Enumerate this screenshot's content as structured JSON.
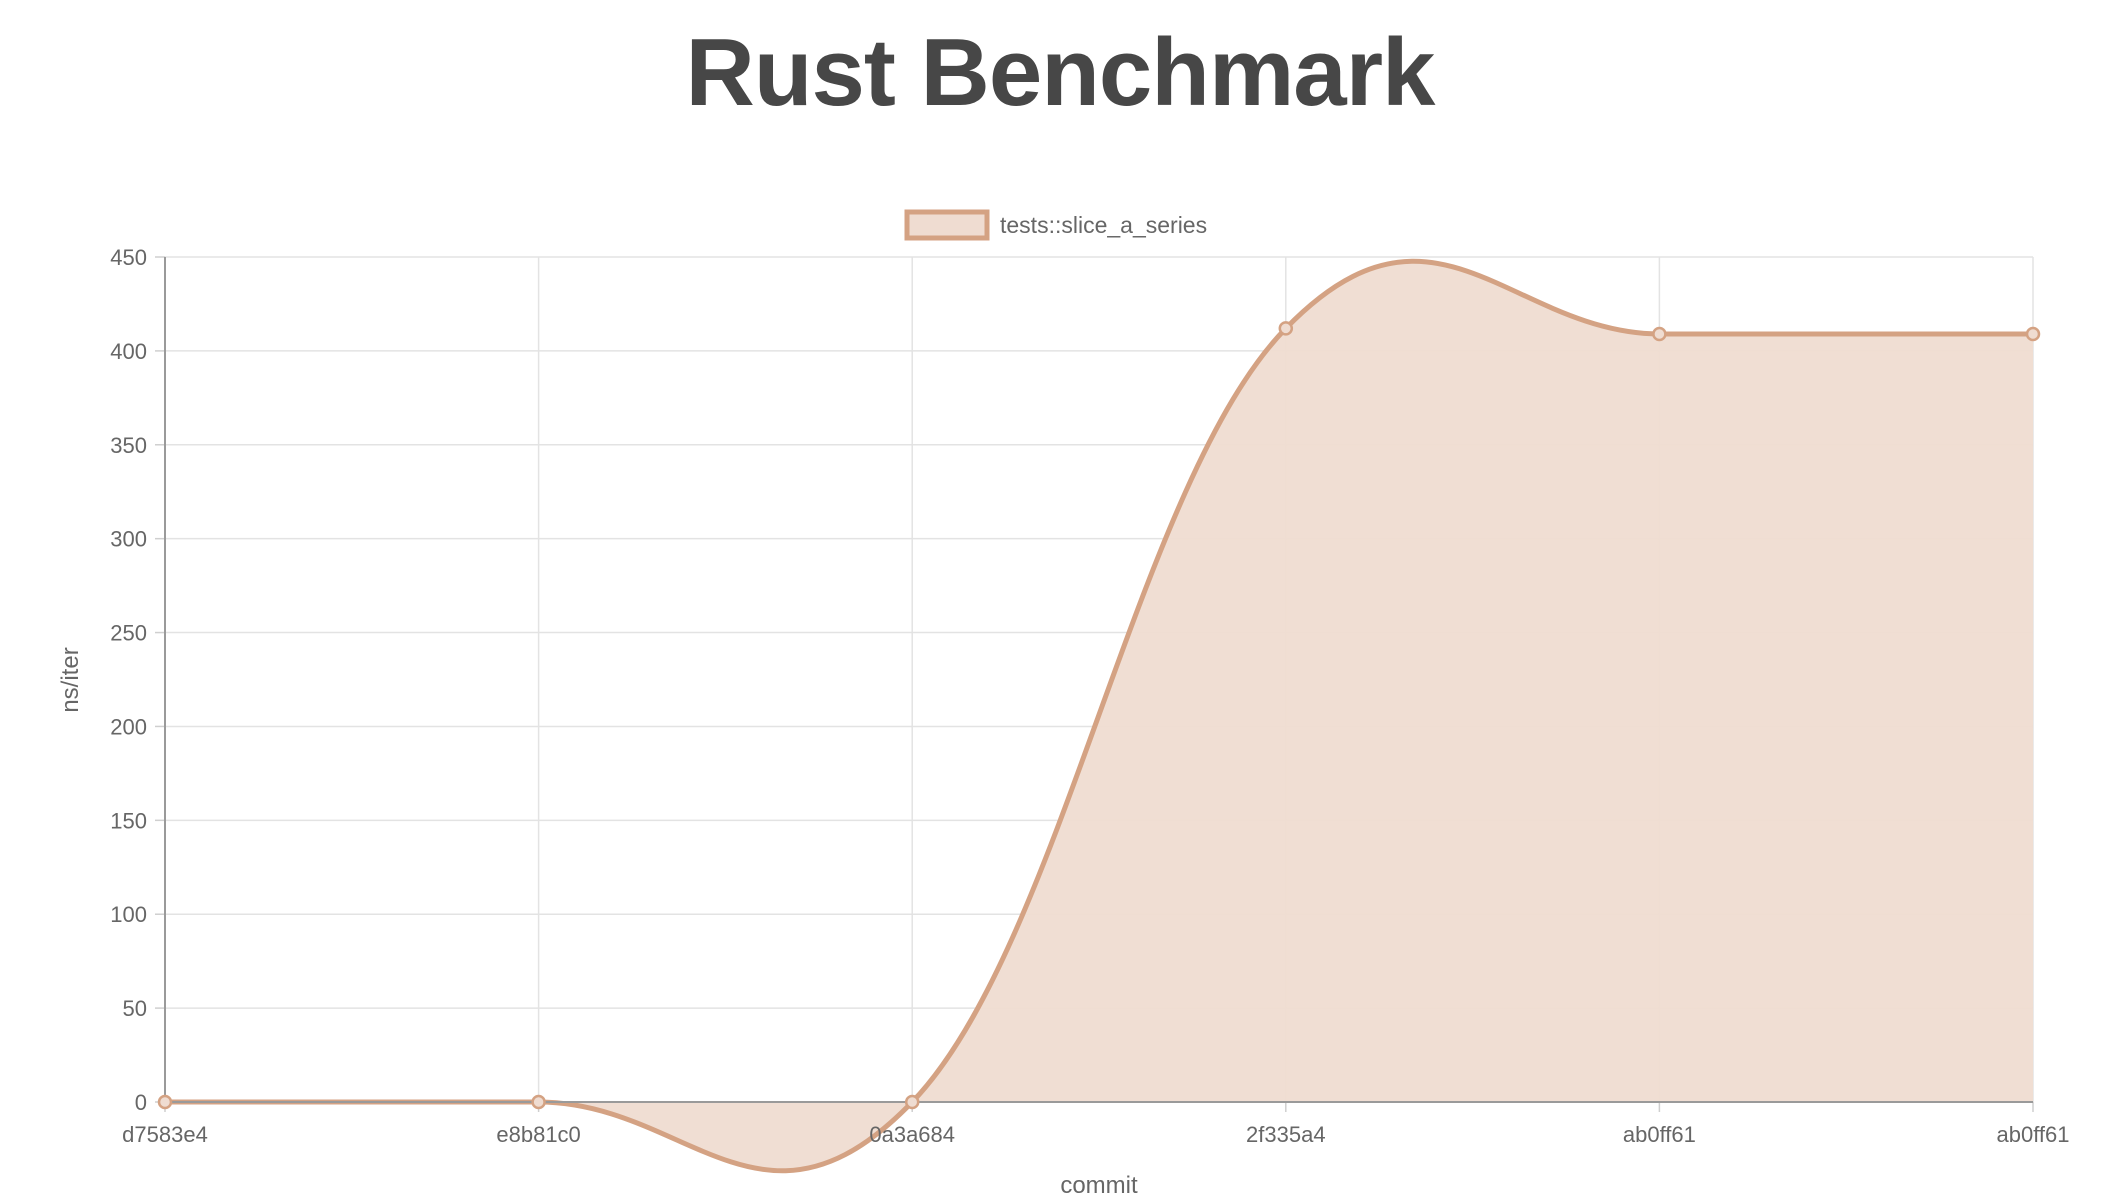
{
  "page": {
    "title": "Rust Benchmark"
  },
  "chart_data": {
    "type": "area",
    "title": "",
    "xlabel": "commit",
    "ylabel": "ns/iter",
    "categories": [
      "d7583e4",
      "e8b81c0",
      "0a3a684",
      "2f335a4",
      "ab0ff61",
      "ab0ff61"
    ],
    "series": [
      {
        "name": "tests::slice_a_series",
        "values": [
          0,
          0,
          0,
          412,
          409,
          409
        ],
        "line_color": "#d4a283",
        "fill_color": "#efdcd1"
      }
    ],
    "ylim": [
      0,
      450
    ],
    "yticks": [
      0,
      50,
      100,
      150,
      200,
      250,
      300,
      350,
      400,
      450
    ],
    "grid": true,
    "legend_position": "top-center",
    "smooth": true
  }
}
